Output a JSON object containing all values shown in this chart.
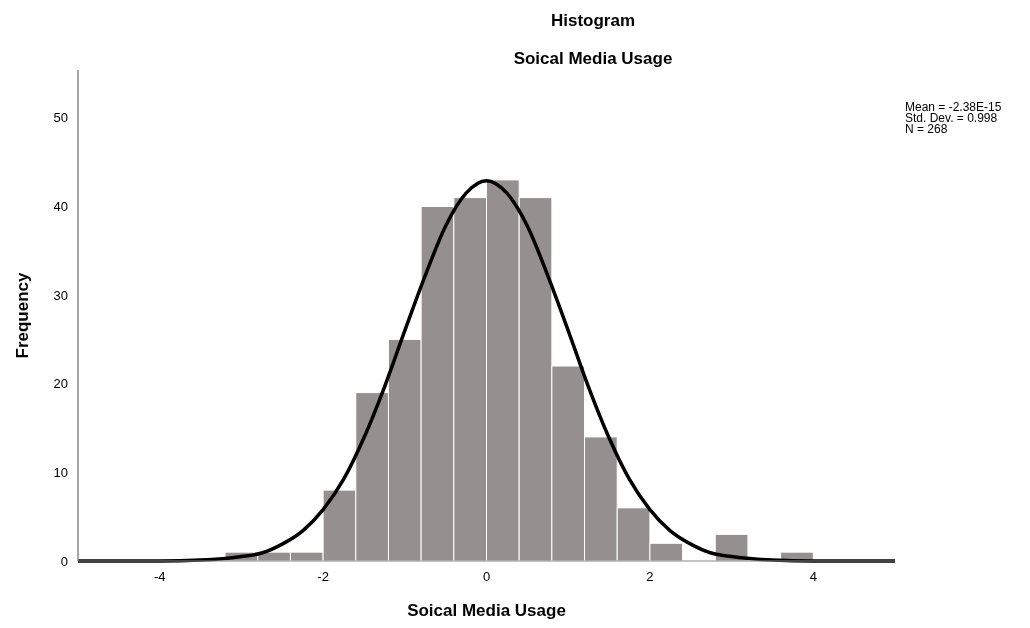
{
  "chart_data": {
    "type": "histogram",
    "title": "Histogram",
    "subtitle": "Soical Media Usage",
    "xlabel": "Soical Media Usage",
    "ylabel": "Frequency",
    "bins": [
      -3.2,
      -2.8,
      -2.4,
      -2.0,
      -1.6,
      -1.2,
      -0.8,
      -0.4,
      0,
      0.4,
      0.8,
      1.2,
      1.6,
      2.0,
      2.4,
      2.8,
      3.2,
      3.6,
      4.0
    ],
    "values": [
      1,
      1,
      1,
      8,
      19,
      25,
      40,
      41,
      43,
      41,
      22,
      14,
      6,
      2,
      0,
      3,
      0,
      1
    ],
    "color": "#958f8f",
    "series": [
      {
        "type": "line",
        "color": "#000000",
        "x": [
          -5,
          -4.5,
          -4,
          -3.5,
          -3,
          -2.75,
          -2.5,
          -2.25,
          -2,
          -1.75,
          -1.5,
          -1.25,
          -1,
          -0.75,
          -0.5,
          -0.25,
          0,
          0.25,
          0.5,
          0.75,
          1,
          1.25,
          1.5,
          1.75,
          2,
          2.25,
          2.5,
          2.75,
          3,
          3.5,
          4,
          4.5,
          5
        ],
        "values": [
          0,
          0,
          0,
          0.1,
          0.5,
          0.9,
          1.9,
          3.4,
          5.8,
          9.2,
          13.9,
          19.6,
          26.0,
          32.2,
          37.8,
          41.5,
          42.9,
          41.5,
          37.8,
          32.2,
          26.0,
          19.6,
          13.9,
          9.2,
          5.8,
          3.4,
          1.9,
          0.9,
          0.5,
          0.1,
          0,
          0,
          0
        ]
      }
    ],
    "xlim": [
      -5,
      5
    ],
    "xticks": [
      -4,
      -2,
      0,
      2,
      4
    ],
    "ylim": [
      0,
      55.4
    ],
    "yticks": [
      0,
      10,
      20,
      30,
      40,
      50
    ],
    "annotations": [
      "Mean = -2.38E-15",
      "Std. Dev. = 0.998",
      "N = 268"
    ]
  }
}
